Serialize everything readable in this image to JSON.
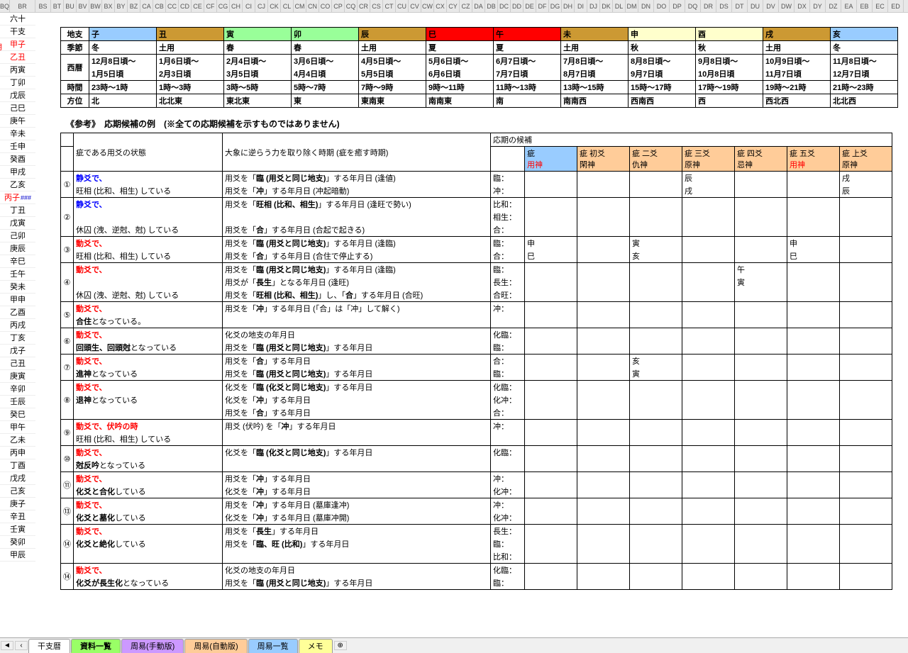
{
  "columnHeaders": [
    "BQ",
    "BR",
    "BS",
    "BT",
    "BU",
    "BV",
    "BW",
    "BX",
    "BY",
    "BZ",
    "CA",
    "CB",
    "CC",
    "CD",
    "CE",
    "CF",
    "CG",
    "CH",
    "CI",
    "CJ",
    "CK",
    "CL",
    "CM",
    "CN",
    "CO",
    "CP",
    "CQ",
    "CR",
    "CS",
    "CT",
    "CU",
    "CV",
    "CW",
    "CX",
    "CY",
    "CZ",
    "DA",
    "DB",
    "DC",
    "DD",
    "DE",
    "DF",
    "DG",
    "DH",
    "DI",
    "DJ",
    "DK",
    "DL",
    "DM",
    "DN",
    "DO",
    "DP",
    "DQ",
    "DR",
    "DS",
    "DT",
    "DU",
    "DV",
    "DW",
    "DX",
    "DY",
    "DZ",
    "EA",
    "EB",
    "EC",
    "ED"
  ],
  "sideLabels": [
    {
      "t": "六十",
      "c": ""
    },
    {
      "t": "干支",
      "c": ""
    },
    {
      "t": "甲子",
      "c": "red"
    },
    {
      "t": "乙丑",
      "c": "red",
      "pre": "月"
    },
    {
      "t": "丙寅",
      "c": ""
    },
    {
      "t": "丁卯",
      "c": ""
    },
    {
      "t": "戊辰",
      "c": ""
    },
    {
      "t": "己巳",
      "c": ""
    },
    {
      "t": "庚午",
      "c": ""
    },
    {
      "t": "辛未",
      "c": ""
    },
    {
      "t": "壬申",
      "c": ""
    },
    {
      "t": "癸酉",
      "c": ""
    },
    {
      "t": "甲戌",
      "c": ""
    },
    {
      "t": "乙亥",
      "c": ""
    },
    {
      "t": "丙子",
      "c": "red",
      "post": "###"
    },
    {
      "t": "丁丑",
      "c": ""
    },
    {
      "t": "戊寅",
      "c": ""
    },
    {
      "t": "己卯",
      "c": ""
    },
    {
      "t": "庚辰",
      "c": ""
    },
    {
      "t": "辛巳",
      "c": ""
    },
    {
      "t": "壬午",
      "c": ""
    },
    {
      "t": "癸未",
      "c": ""
    },
    {
      "t": "甲申",
      "c": ""
    },
    {
      "t": "乙酉",
      "c": ""
    },
    {
      "t": "丙戌",
      "c": ""
    },
    {
      "t": "丁亥",
      "c": ""
    },
    {
      "t": "戊子",
      "c": ""
    },
    {
      "t": "己丑",
      "c": ""
    },
    {
      "t": "庚寅",
      "c": ""
    },
    {
      "t": "辛卯",
      "c": ""
    },
    {
      "t": "壬辰",
      "c": ""
    },
    {
      "t": "癸巳",
      "c": ""
    },
    {
      "t": "甲午",
      "c": ""
    },
    {
      "t": "乙未",
      "c": ""
    },
    {
      "t": "丙申",
      "c": ""
    },
    {
      "t": "丁酉",
      "c": ""
    },
    {
      "t": "戊戌",
      "c": ""
    },
    {
      "t": "己亥",
      "c": ""
    },
    {
      "t": "庚子",
      "c": ""
    },
    {
      "t": "辛丑",
      "c": ""
    },
    {
      "t": "壬寅",
      "c": ""
    },
    {
      "t": "癸卯",
      "c": ""
    },
    {
      "t": "甲辰",
      "c": ""
    }
  ],
  "zodiacHeader": {
    "row0_label": "地支",
    "row0": [
      {
        "t": "子",
        "bg": "bg-lblue"
      },
      {
        "t": "丑",
        "bg": "bg-gold"
      },
      {
        "t": "寅",
        "bg": "bg-green"
      },
      {
        "t": "卯",
        "bg": "bg-green"
      },
      {
        "t": "辰",
        "bg": "bg-gold"
      },
      {
        "t": "巳",
        "bg": "bg-red"
      },
      {
        "t": "午",
        "bg": "bg-red"
      },
      {
        "t": "未",
        "bg": "bg-gold"
      },
      {
        "t": "申",
        "bg": "bg-cream"
      },
      {
        "t": "酉",
        "bg": "bg-cream"
      },
      {
        "t": "戌",
        "bg": "bg-gold"
      },
      {
        "t": "亥",
        "bg": "bg-lblue"
      }
    ],
    "row1_label": "季節",
    "row1": [
      "冬",
      "土用",
      "春",
      "春",
      "土用",
      "夏",
      "夏",
      "土用",
      "秋",
      "秋",
      "土用",
      "冬"
    ],
    "row2_label": "西暦",
    "row2a": [
      "12月8日頃～",
      "1月6日頃～",
      "2月4日頃～",
      "3月6日頃～",
      "4月5日頃～",
      "5月6日頃～",
      "6月7日頃～",
      "7月8日頃～",
      "8月8日頃～",
      "9月8日頃～",
      "10月9日頃～",
      "11月8日頃～"
    ],
    "row2b": [
      "1月5日頃",
      "2月3日頃",
      "3月5日頃",
      "4月4日頃",
      "5月5日頃",
      "6月6日頃",
      "7月7日頃",
      "8月7日頃",
      "9月7日頃",
      "10月8日頃",
      "11月7日頃",
      "12月7日頃"
    ],
    "row3_label": "時間",
    "row3": [
      "23時～1時",
      "1時～3時",
      "3時～5時",
      "5時～7時",
      "7時～9時",
      "9時～11時",
      "11時～13時",
      "13時～15時",
      "15時～17時",
      "17時～19時",
      "19時～21時",
      "21時～23時"
    ],
    "row4_label": "方位",
    "row4": [
      "北",
      "北北東",
      "東北東",
      "東",
      "東南東",
      "南南東",
      "南",
      "南南西",
      "西南西",
      "西",
      "西北西",
      "北北西"
    ]
  },
  "refTitle": "《参考》　応期候補の例　(※全ての応期候補を示すものではありません)",
  "refHeader": {
    "h1": "疵である用爻の状態",
    "h2": "大象に逆らう力を取り除く時期 (疵を癒す時期)",
    "h3": "応期の候補",
    "cols": [
      {
        "a": "疵",
        "b": "用神",
        "bc": "red",
        "bg": "bg-lblue"
      },
      {
        "a": "疵 初爻",
        "b": "閑神",
        "bc": "",
        "bg": "bg-peach"
      },
      {
        "a": "疵 二爻",
        "b": "仇神",
        "bc": "",
        "bg": "bg-peach"
      },
      {
        "a": "疵 三爻",
        "b": "原神",
        "bc": "",
        "bg": "bg-peach"
      },
      {
        "a": "疵 四爻",
        "b": "忌神",
        "bc": "",
        "bg": "bg-peach"
      },
      {
        "a": "疵 五爻",
        "b": "用神",
        "bc": "red",
        "bg": "bg-peach"
      },
      {
        "a": "疵 上爻",
        "b": "原神",
        "bc": "",
        "bg": "bg-peach"
      }
    ]
  },
  "refRows": [
    {
      "n": "①",
      "s": [
        {
          "t": "静爻で、",
          "c": "blue bold"
        },
        {
          "t": "旺相 (比和、相生) している"
        }
      ],
      "tm": [
        "用爻を「<b>臨 (用爻と同じ地支)</b>」する年月日 (逢値)",
        "用爻を「<b>冲</b>」する年月日 (冲起暗動)"
      ],
      "lbl": [
        "臨：",
        "冲："
      ],
      "v": [
        [
          "",
          "",
          "",
          "辰",
          "",
          "",
          "戌"
        ],
        [
          "",
          "",
          "",
          "戌",
          "",
          "",
          "辰"
        ]
      ]
    },
    {
      "n": "②",
      "s": [
        {
          "t": "静爻で、",
          "c": "blue bold"
        },
        {
          "t": ""
        },
        {
          "t": "休囚 (洩、逆尅、尅) している"
        }
      ],
      "tm": [
        "用爻を「<b>旺相 (比和、相生)</b>」する年月日 (逢旺で勢い)",
        "",
        "用爻を「<b>合</b>」する年月日 (合起で起きる)"
      ],
      "lbl": [
        "比和：",
        "相生：",
        "合："
      ],
      "v": [
        [
          "",
          "",
          "",
          "",
          "",
          "",
          ""
        ],
        [
          "",
          "",
          "",
          "",
          "",
          "",
          ""
        ],
        [
          "",
          "",
          "",
          "",
          "",
          "",
          ""
        ]
      ]
    },
    {
      "n": "③",
      "s": [
        {
          "t": "動爻で、",
          "c": "red bold"
        },
        {
          "t": "旺相 (比和、相生) している"
        }
      ],
      "tm": [
        "用爻を「<b>臨 (用爻と同じ地支)</b>」する年月日 (逢臨)",
        "用爻を「<b>合</b>」する年月日 (合住で停止する)"
      ],
      "lbl": [
        "臨：",
        "合："
      ],
      "v": [
        [
          "申",
          "",
          "寅",
          "",
          "",
          "申",
          ""
        ],
        [
          "巳",
          "",
          "亥",
          "",
          "",
          "巳",
          ""
        ]
      ]
    },
    {
      "n": "④",
      "s": [
        {
          "t": "動爻で、",
          "c": "red bold"
        },
        {
          "t": ""
        },
        {
          "t": "休囚 (洩、逆尅、尅) している"
        }
      ],
      "tm": [
        "用爻を「<b>臨 (用爻と同じ地支)</b>」する年月日 (逢臨)",
        "用爻が「<b>長生</b>」となる年月日 (逢旺)",
        "用爻を「<b>旺相 (比和、相生)</b>」し、「<b>合</b>」する年月日 (合旺)"
      ],
      "lbl": [
        "臨：",
        "長生：",
        "合旺："
      ],
      "v": [
        [
          "",
          "",
          "",
          "",
          "午",
          "",
          ""
        ],
        [
          "",
          "",
          "",
          "",
          "寅",
          "",
          ""
        ],
        [
          "",
          "",
          "",
          "",
          "",
          "",
          ""
        ]
      ]
    },
    {
      "n": "⑤",
      "s": [
        {
          "t": "動爻で、",
          "c": "red bold"
        },
        {
          "t": "<b>合住</b>となっている。"
        }
      ],
      "tm": [
        "用爻を「<b>冲</b>」する年月日 (「合」は「冲」して解く)",
        ""
      ],
      "lbl": [
        "冲：",
        ""
      ],
      "v": [
        [
          "",
          "",
          "",
          "",
          "",
          "",
          ""
        ],
        [
          "",
          "",
          "",
          "",
          "",
          "",
          ""
        ]
      ]
    },
    {
      "n": "⑥",
      "s": [
        {
          "t": "動爻で、",
          "c": "red bold"
        },
        {
          "t": "<b>回頭生、回頭尅</b>となっている"
        }
      ],
      "tm": [
        "化爻の地支の年月日",
        "用爻を「<b>臨 (用爻と同じ地支)</b>」する年月日"
      ],
      "lbl": [
        "化臨：",
        "臨："
      ],
      "v": [
        [
          "",
          "",
          "",
          "",
          "",
          "",
          ""
        ],
        [
          "",
          "",
          "",
          "",
          "",
          "",
          ""
        ]
      ]
    },
    {
      "n": "⑦",
      "s": [
        {
          "t": "動爻で、",
          "c": "red bold"
        },
        {
          "t": "<b>進神</b>となっている"
        }
      ],
      "tm": [
        "用爻を「<b>合</b>」する年月日",
        "用爻を「<b>臨 (用爻と同じ地支)</b>」する年月日"
      ],
      "lbl": [
        "合：",
        "臨："
      ],
      "v": [
        [
          "",
          "",
          "亥",
          "",
          "",
          "",
          ""
        ],
        [
          "",
          "",
          "寅",
          "",
          "",
          "",
          ""
        ]
      ]
    },
    {
      "n": "⑧",
      "s": [
        {
          "t": "動爻で、",
          "c": "red bold"
        },
        {
          "t": "<b>退神</b>となっている"
        },
        {
          "t": ""
        }
      ],
      "tm": [
        "化爻を「<b>臨 (化爻と同じ地支)</b>」する年月日",
        "化爻を「<b>冲</b>」する年月日",
        "用爻を「<b>合</b>」する年月日"
      ],
      "lbl": [
        "化臨：",
        "化冲：",
        "合："
      ],
      "v": [
        [
          "",
          "",
          "",
          "",
          "",
          "",
          ""
        ],
        [
          "",
          "",
          "",
          "",
          "",
          "",
          ""
        ],
        [
          "",
          "",
          "",
          "",
          "",
          "",
          ""
        ]
      ]
    },
    {
      "n": "⑨",
      "s": [
        {
          "t": "動爻で、伏吟の時",
          "c": "red bold"
        },
        {
          "t": "旺相 (比和、相生) している"
        }
      ],
      "tm": [
        "用爻 (伏吟) を「<b>冲</b>」する年月日",
        ""
      ],
      "lbl": [
        "冲：",
        ""
      ],
      "v": [
        [
          "",
          "",
          "",
          "",
          "",
          "",
          ""
        ],
        [
          "",
          "",
          "",
          "",
          "",
          "",
          ""
        ]
      ]
    },
    {
      "n": "⑩",
      "s": [
        {
          "t": "動爻で、",
          "c": "red bold"
        },
        {
          "t": "<b>尅反吟</b>となっている"
        }
      ],
      "tm": [
        "化爻を「<b>臨 (化爻と同じ地支)</b>」する年月日",
        ""
      ],
      "lbl": [
        "化臨：",
        ""
      ],
      "v": [
        [
          "",
          "",
          "",
          "",
          "",
          "",
          ""
        ],
        [
          "",
          "",
          "",
          "",
          "",
          "",
          ""
        ]
      ]
    },
    {
      "n": "⑪",
      "s": [
        {
          "t": "動爻で、",
          "c": "red bold"
        },
        {
          "t": "<b>化爻と合化</b>している"
        }
      ],
      "tm": [
        "用爻を「<b>冲</b>」する年月日",
        "化爻を「<b>冲</b>」する年月日"
      ],
      "lbl": [
        "冲：",
        "化冲："
      ],
      "v": [
        [
          "",
          "",
          "",
          "",
          "",
          "",
          ""
        ],
        [
          "",
          "",
          "",
          "",
          "",
          "",
          ""
        ]
      ]
    },
    {
      "n": "⑬",
      "s": [
        {
          "t": "動爻で、",
          "c": "red bold"
        },
        {
          "t": "<b>化爻と墓化</b>している"
        }
      ],
      "tm": [
        "用爻を「<b>冲</b>」する年月日 (墓庫逢冲)",
        "化爻を「<b>冲</b>」する年月日 (墓庫冲開)"
      ],
      "lbl": [
        "冲：",
        "化冲："
      ],
      "v": [
        [
          "",
          "",
          "",
          "",
          "",
          "",
          ""
        ],
        [
          "",
          "",
          "",
          "",
          "",
          "",
          ""
        ]
      ]
    },
    {
      "n": "⑭",
      "s": [
        {
          "t": "動爻で、",
          "c": "red bold"
        },
        {
          "t": "<b>化爻と絶化</b>している"
        },
        {
          "t": ""
        }
      ],
      "tm": [
        "用爻を「<b>長生</b>」する年月日",
        "用爻を「<b>臨、旺 (比和)</b>」する年月日",
        ""
      ],
      "lbl": [
        "長生：",
        "臨：",
        "比和："
      ],
      "v": [
        [
          "",
          "",
          "",
          "",
          "",
          "",
          ""
        ],
        [
          "",
          "",
          "",
          "",
          "",
          "",
          ""
        ],
        [
          "",
          "",
          "",
          "",
          "",
          "",
          ""
        ]
      ]
    },
    {
      "n": "⑭",
      "s": [
        {
          "t": "動爻で、",
          "c": "red bold"
        },
        {
          "t": "<b>化爻が長生化</b>となっている"
        }
      ],
      "tm": [
        "化爻の地支の年月日",
        "用爻を「<b>臨 (用爻と同じ地支)</b>」する年月日"
      ],
      "lbl": [
        "化臨：",
        "臨："
      ],
      "v": [
        [
          "",
          "",
          "",
          "",
          "",
          "",
          ""
        ],
        [
          "",
          "",
          "",
          "",
          "",
          "",
          ""
        ]
      ]
    }
  ],
  "tabs": [
    {
      "t": "干支暦",
      "bg": "#ffffff"
    },
    {
      "t": "資料一覧",
      "bg": "#99ff66",
      "active": true
    },
    {
      "t": "周易(手動版)",
      "bg": "#cc99ff"
    },
    {
      "t": "周易(自動版)",
      "bg": "#ffcc99"
    },
    {
      "t": "周易一覧",
      "bg": "#99ccff"
    },
    {
      "t": "メモ",
      "bg": "#ffff99"
    }
  ]
}
